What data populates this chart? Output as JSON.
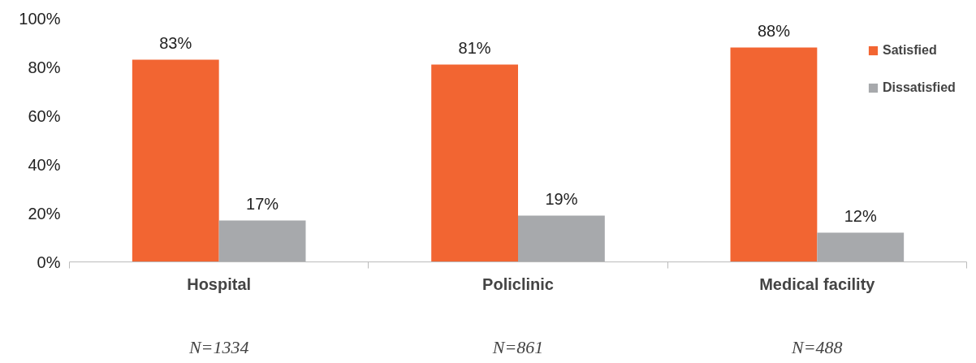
{
  "chart_data": {
    "type": "bar",
    "categories": [
      "Hospital",
      "Policlinic",
      "Medical facility"
    ],
    "series": [
      {
        "name": "Satisfied",
        "color": "#f26532",
        "values": [
          83,
          81,
          88
        ],
        "value_labels": [
          "83%",
          "81%",
          "88%"
        ]
      },
      {
        "name": "Dissatisfied",
        "color": "#a7a9ac",
        "values": [
          17,
          19,
          12
        ],
        "value_labels": [
          "17%",
          "19%",
          "12%"
        ]
      }
    ],
    "ylim": [
      0,
      100
    ],
    "yticks": [
      {
        "value": 0,
        "label": "0%"
      },
      {
        "value": 20,
        "label": "20%"
      },
      {
        "value": 40,
        "label": "40%"
      },
      {
        "value": 60,
        "label": "60%"
      },
      {
        "value": 80,
        "label": "80%"
      },
      {
        "value": 100,
        "label": "100%"
      }
    ],
    "grid": false,
    "legend": "right",
    "annotations": [
      "N=1334",
      "N=861",
      "N=488"
    ]
  }
}
